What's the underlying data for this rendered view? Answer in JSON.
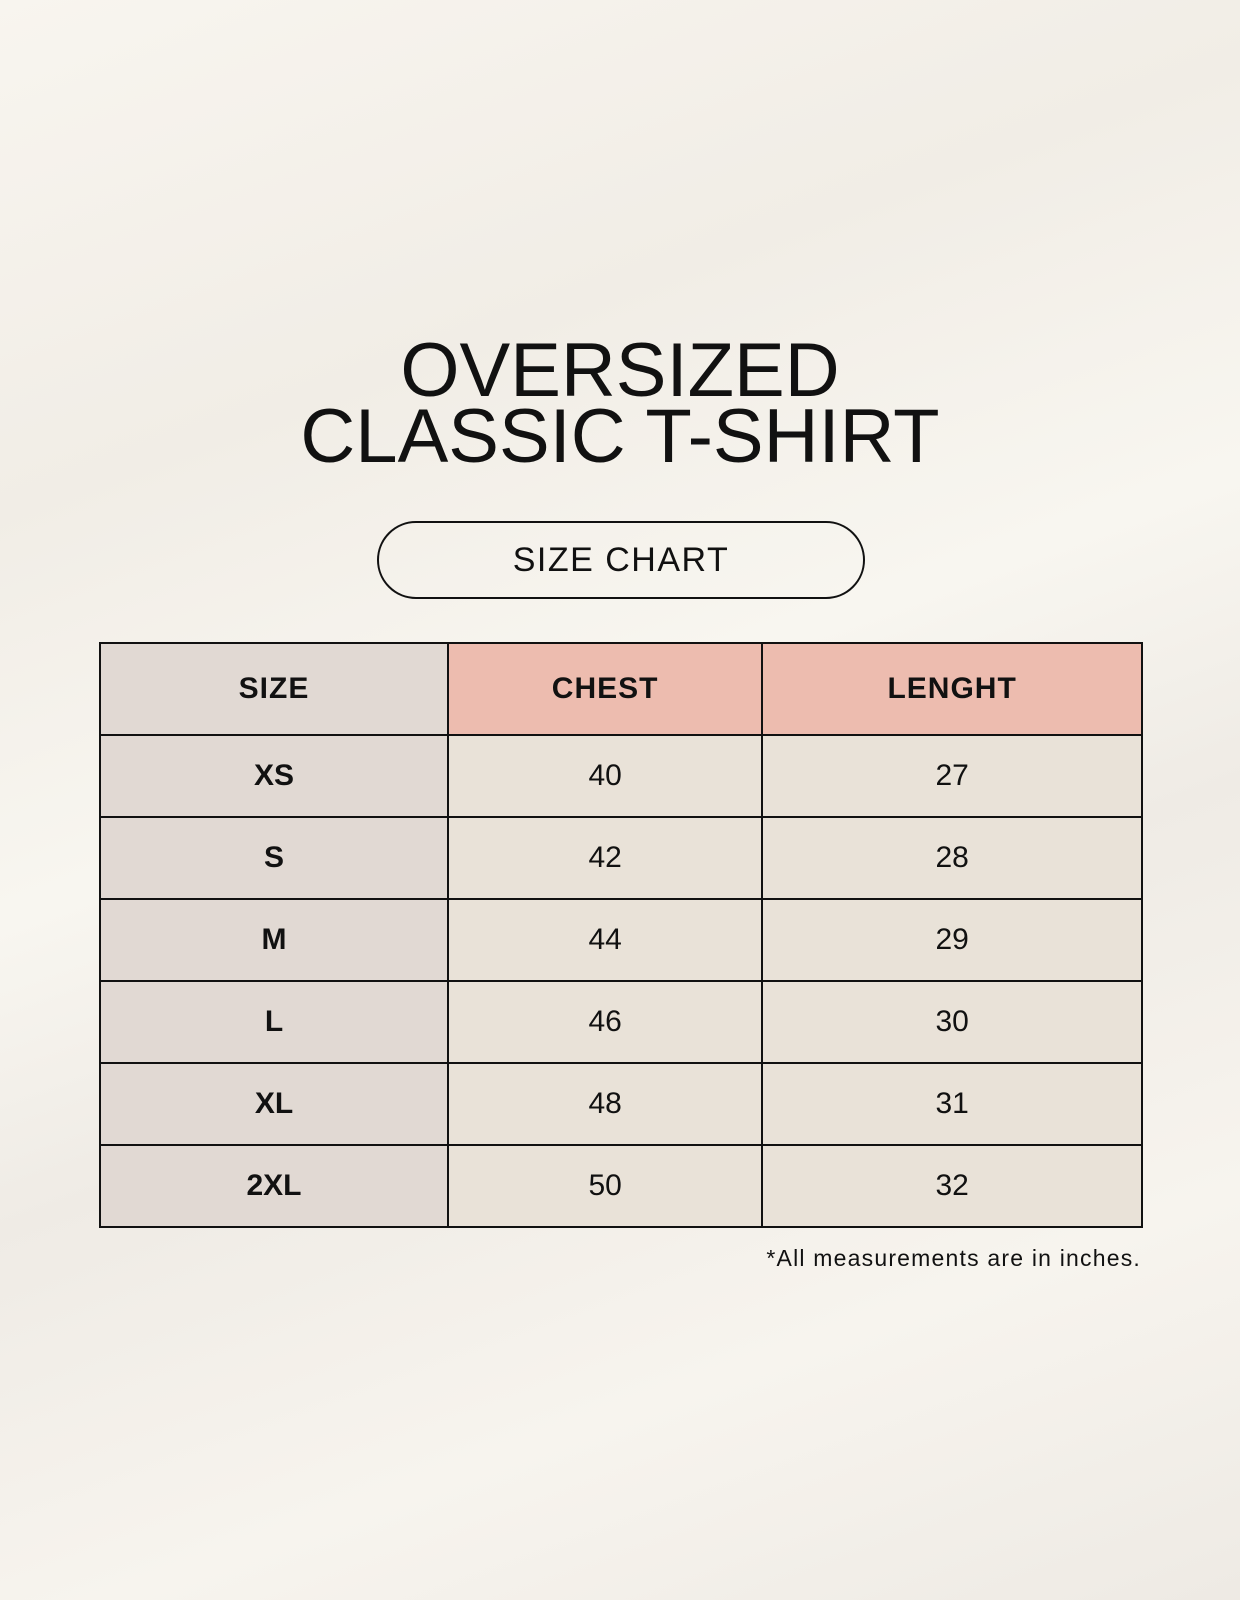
{
  "title": {
    "line1": "OVERSIZED",
    "line2": "CLASSIC T-SHIRT"
  },
  "badge": "SIZE CHART",
  "table": {
    "headers": [
      "SIZE",
      "CHEST",
      "LENGHT"
    ],
    "rows": [
      [
        "XS",
        "40",
        "27"
      ],
      [
        "S",
        "42",
        "28"
      ],
      [
        "M",
        "44",
        "29"
      ],
      [
        "L",
        "46",
        "30"
      ],
      [
        "XL",
        "48",
        "31"
      ],
      [
        "2XL",
        "50",
        "32"
      ]
    ]
  },
  "footnote": "*All measurements are in inches.",
  "colors": {
    "size_column": "#e1d9d3",
    "header_accent": "#edbcaf",
    "cell": "#e9e2d8"
  }
}
